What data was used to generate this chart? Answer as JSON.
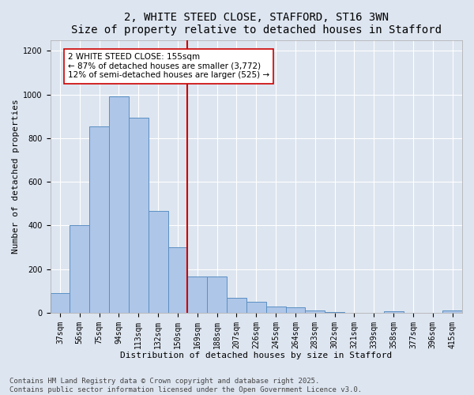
{
  "title": "2, WHITE STEED CLOSE, STAFFORD, ST16 3WN",
  "subtitle": "Size of property relative to detached houses in Stafford",
  "xlabel": "Distribution of detached houses by size in Stafford",
  "ylabel": "Number of detached properties",
  "footer_line1": "Contains HM Land Registry data © Crown copyright and database right 2025.",
  "footer_line2": "Contains public sector information licensed under the Open Government Licence v3.0.",
  "categories": [
    "37sqm",
    "56sqm",
    "75sqm",
    "94sqm",
    "113sqm",
    "132sqm",
    "150sqm",
    "169sqm",
    "188sqm",
    "207sqm",
    "226sqm",
    "245sqm",
    "264sqm",
    "283sqm",
    "302sqm",
    "321sqm",
    "339sqm",
    "358sqm",
    "377sqm",
    "396sqm",
    "415sqm"
  ],
  "values": [
    90,
    400,
    855,
    990,
    895,
    465,
    300,
    165,
    165,
    70,
    50,
    30,
    25,
    10,
    2,
    0,
    0,
    8,
    0,
    0,
    10
  ],
  "bar_color": "#aec6e8",
  "bar_edge_color": "#5a8fc2",
  "vline_index": 6,
  "vline_color": "#cc0000",
  "annotation_text": "2 WHITE STEED CLOSE: 155sqm\n← 87% of detached houses are smaller (3,772)\n12% of semi-detached houses are larger (525) →",
  "annotation_box_color": "#ffffff",
  "annotation_box_edge_color": "#cc0000",
  "ylim": [
    0,
    1250
  ],
  "yticks": [
    0,
    200,
    400,
    600,
    800,
    1000,
    1200
  ],
  "background_color": "#dde5f0",
  "plot_bg_color": "#dde5f0",
  "grid_color": "#ffffff",
  "title_fontsize": 10,
  "subtitle_fontsize": 9,
  "axis_label_fontsize": 8,
  "tick_fontsize": 7,
  "annotation_fontsize": 7.5,
  "footer_fontsize": 6.5
}
